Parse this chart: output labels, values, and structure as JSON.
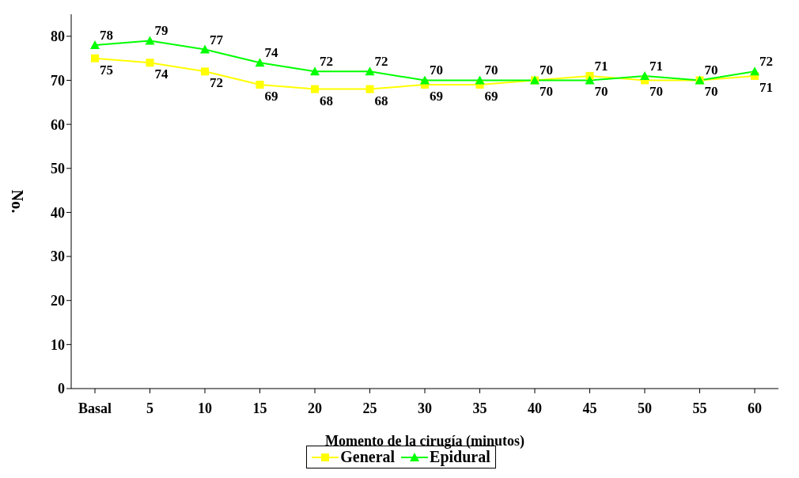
{
  "chart_data": {
    "type": "line",
    "xlabel": "Momento de la cirugía (minutos)",
    "ylabel": "No.",
    "categories": [
      "Basal",
      "5",
      "10",
      "15",
      "20",
      "25",
      "30",
      "35",
      "40",
      "45",
      "50",
      "55",
      "60"
    ],
    "series": [
      {
        "name": "General",
        "color": "#ffff00",
        "marker": "square",
        "values": [
          75,
          74,
          72,
          69,
          68,
          68,
          69,
          69,
          70,
          71,
          70,
          70,
          71
        ]
      },
      {
        "name": "Epidural",
        "color": "#00ff00",
        "marker": "triangle",
        "values": [
          78,
          79,
          77,
          74,
          72,
          72,
          70,
          70,
          70,
          70,
          71,
          70,
          72
        ]
      }
    ],
    "ylim": [
      0,
      85
    ],
    "yticks": [
      0,
      10,
      20,
      30,
      40,
      50,
      60,
      70,
      80
    ],
    "grid": false,
    "legend": "bottom",
    "data_labels": true,
    "line_style": "solid"
  }
}
